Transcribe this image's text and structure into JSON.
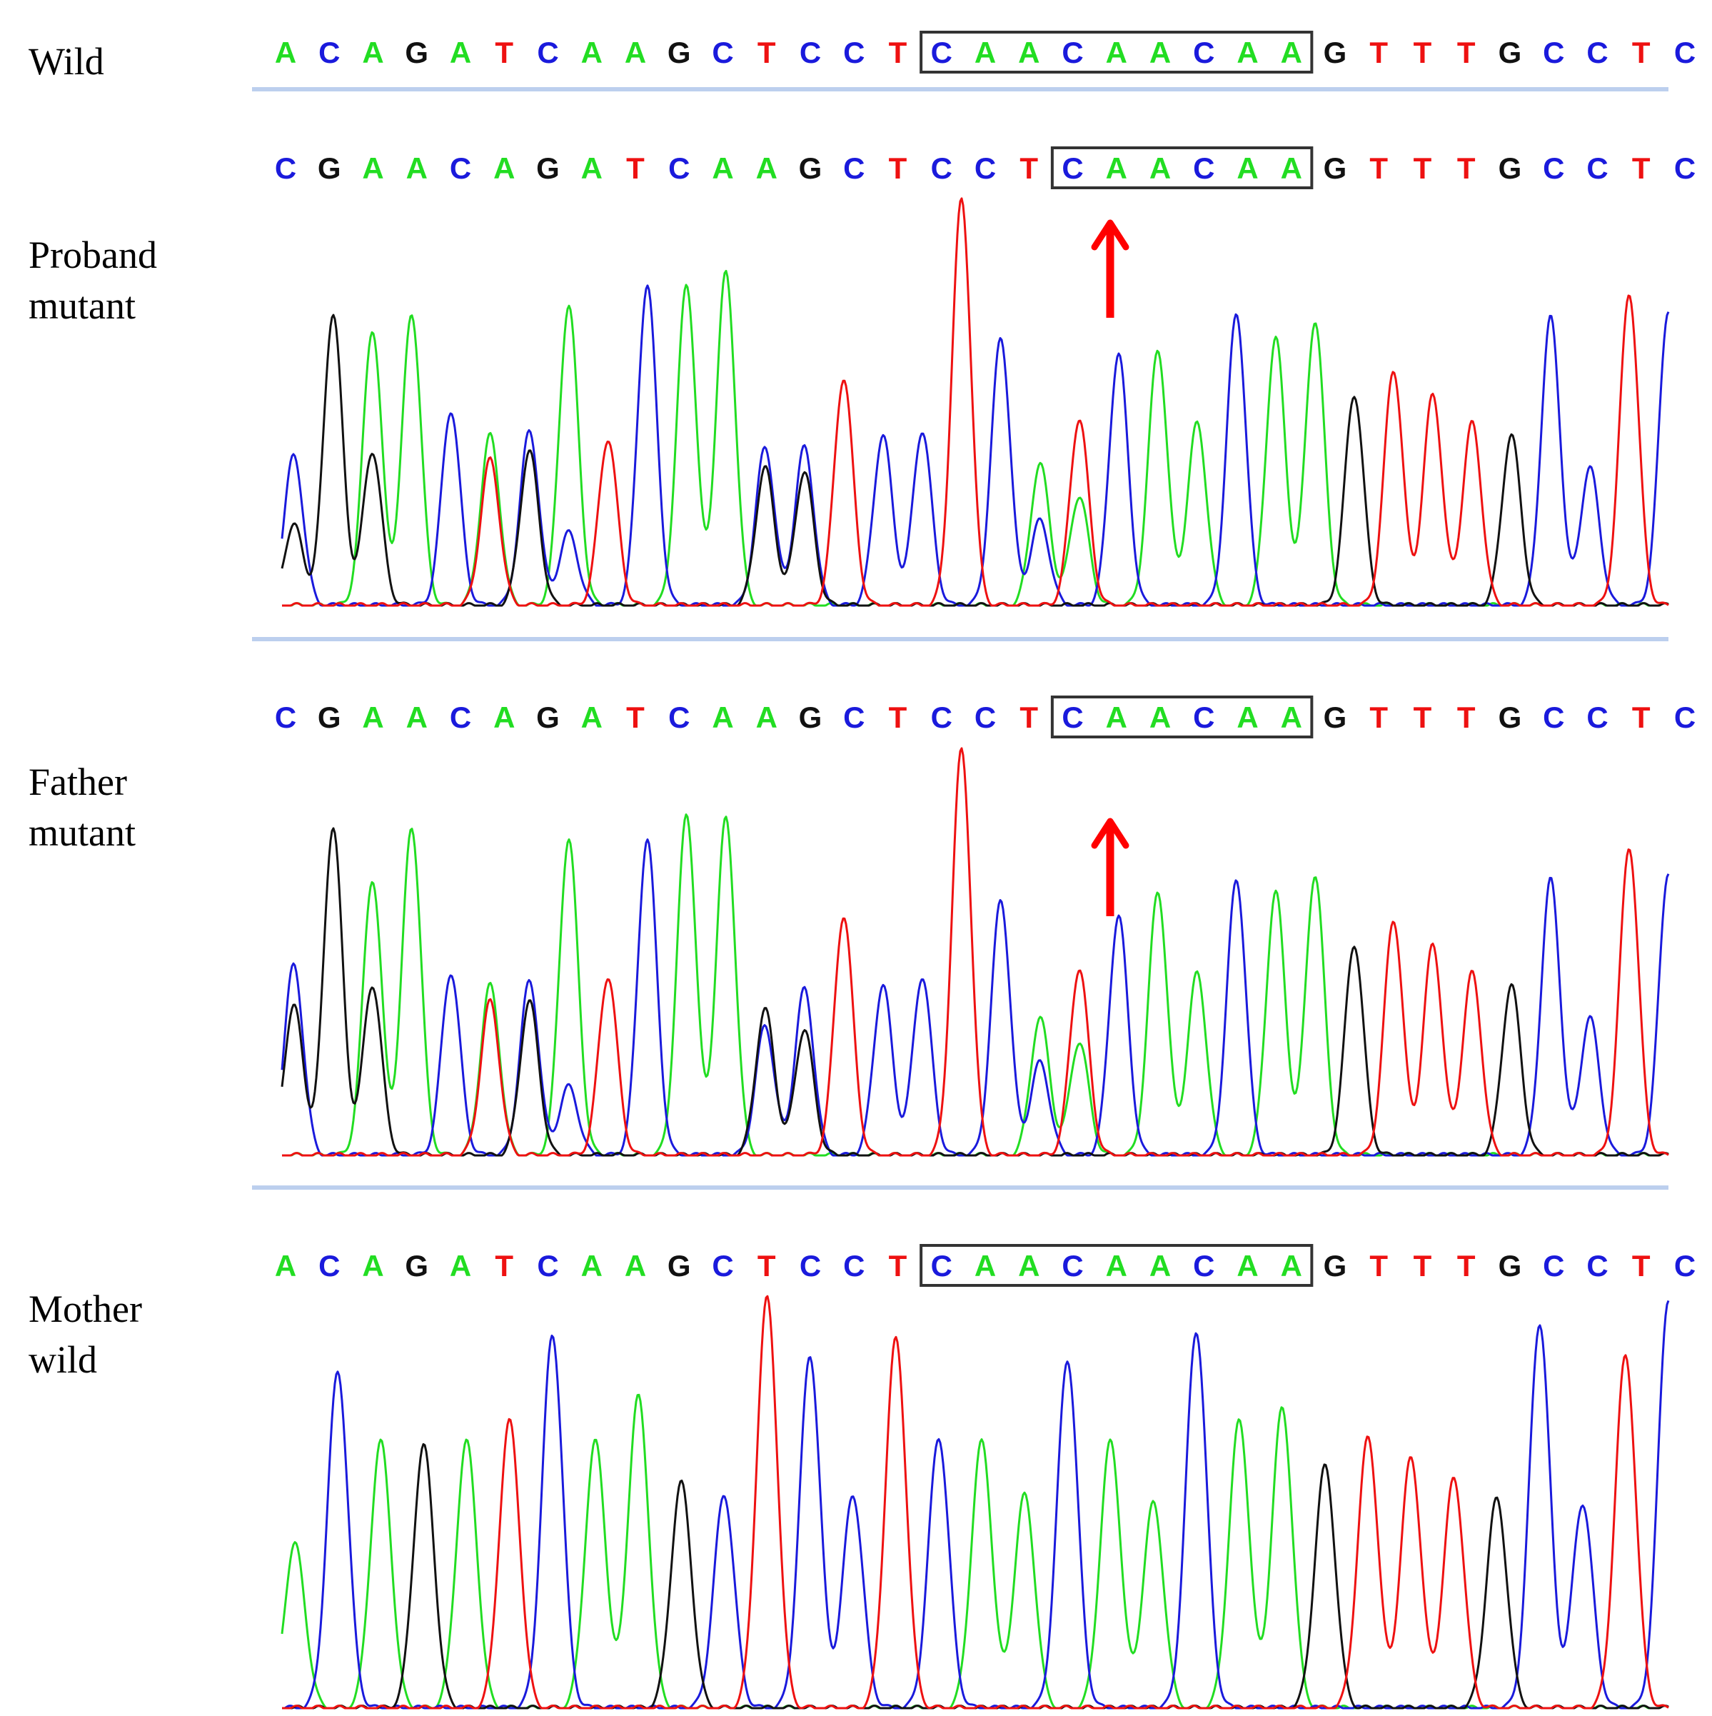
{
  "colors": {
    "A": "#22dd22",
    "C": "#1a1adc",
    "G": "#111111",
    "T": "#ee1111",
    "separator": "#bccfee",
    "arrow": "#ff0000",
    "box": "#333333"
  },
  "panels": [
    {
      "label_lines": [
        "Wild"
      ],
      "sequence": "ACAGATCAAGCTCCTCAACAACAAGTTTGCCTC",
      "box": [
        15,
        23
      ],
      "has_trace": false,
      "has_arrow": false
    },
    {
      "label_lines": [
        "Proband",
        "mutant"
      ],
      "sequence": "CGAACAGATCAAGCTCCTCAACAAGTTTGCCTC",
      "box": [
        18,
        23
      ],
      "has_trace": true,
      "has_arrow": true
    },
    {
      "label_lines": [
        "Father",
        "mutant"
      ],
      "sequence": "CGAACAGATCAAGCTCCTCAACAAGTTTGCCTC",
      "box": [
        18,
        23
      ],
      "has_trace": true,
      "has_arrow": true
    },
    {
      "label_lines": [
        "Mother",
        "wild"
      ],
      "sequence": "ACAGATCAAGCTCCTCAACAACAAGTTTGCCTC",
      "box": [
        15,
        23
      ],
      "has_trace": true,
      "has_arrow": false
    }
  ],
  "chart_data": [
    {
      "type": "line",
      "name": "Proband mutant chromatogram",
      "primary": [
        [
          "C",
          0.37
        ],
        [
          "G",
          0.72
        ],
        [
          "A",
          0.38
        ],
        [
          "A",
          0.4
        ],
        [
          "C",
          0.48
        ],
        [
          "A",
          0.42
        ],
        [
          "G",
          0.38
        ],
        [
          "A",
          0.74
        ],
        [
          "T",
          0.41
        ],
        [
          "C",
          0.43
        ],
        [
          "A",
          0.37
        ],
        [
          "A",
          0.41
        ],
        [
          "G",
          0.34
        ],
        [
          "C",
          0.39
        ],
        [
          "T",
          0.56
        ],
        [
          "C",
          0.42
        ],
        [
          "C",
          0.43
        ],
        [
          "T",
          1.0
        ],
        [
          "C",
          0.66
        ],
        [
          "C",
          0.21
        ],
        [
          "T",
          0.46
        ],
        [
          "C",
          0.62
        ],
        [
          "A",
          0.63
        ],
        [
          "A",
          0.45
        ],
        [
          "C",
          0.72
        ],
        [
          "A",
          0.66
        ],
        [
          "A",
          0.7
        ],
        [
          "G",
          0.52
        ],
        [
          "T",
          0.58
        ],
        [
          "T",
          0.52
        ],
        [
          "T",
          0.45
        ],
        [
          "G",
          0.42
        ],
        [
          "C",
          0.71
        ],
        [
          "C",
          0.34
        ],
        [
          "T",
          0.77
        ],
        [
          "C",
          0.73
        ]
      ],
      "secondary": [
        [
          0,
          "G",
          0.2
        ],
        [
          2,
          "G",
          0.38
        ],
        [
          2,
          "A",
          0.3
        ],
        [
          3,
          "A",
          0.32
        ],
        [
          5,
          "T",
          0.36
        ],
        [
          6,
          "C",
          0.43
        ],
        [
          7,
          "C",
          0.18
        ],
        [
          9,
          "C",
          0.36
        ],
        [
          10,
          "A",
          0.42
        ],
        [
          11,
          "A",
          0.41
        ],
        [
          12,
          "C",
          0.39
        ],
        [
          13,
          "G",
          0.33
        ],
        [
          19,
          "A",
          0.35
        ],
        [
          20,
          "A",
          0.27
        ]
      ]
    },
    {
      "type": "line",
      "name": "Father mutant chromatogram",
      "primary": [
        [
          "C",
          0.47
        ],
        [
          "G",
          0.81
        ],
        [
          "A",
          0.4
        ],
        [
          "A",
          0.42
        ],
        [
          "C",
          0.45
        ],
        [
          "A",
          0.42
        ],
        [
          "G",
          0.38
        ],
        [
          "A",
          0.78
        ],
        [
          "T",
          0.44
        ],
        [
          "C",
          0.4
        ],
        [
          "A",
          0.39
        ],
        [
          "A",
          0.41
        ],
        [
          "G",
          0.36
        ],
        [
          "C",
          0.41
        ],
        [
          "T",
          0.59
        ],
        [
          "C",
          0.42
        ],
        [
          "C",
          0.44
        ],
        [
          "T",
          1.0
        ],
        [
          "C",
          0.63
        ],
        [
          "C",
          0.23
        ],
        [
          "T",
          0.46
        ],
        [
          "C",
          0.59
        ],
        [
          "A",
          0.65
        ],
        [
          "A",
          0.45
        ],
        [
          "C",
          0.68
        ],
        [
          "A",
          0.65
        ],
        [
          "A",
          0.69
        ],
        [
          "G",
          0.52
        ],
        [
          "T",
          0.58
        ],
        [
          "T",
          0.52
        ],
        [
          "T",
          0.45
        ],
        [
          "G",
          0.42
        ],
        [
          "C",
          0.68
        ],
        [
          "C",
          0.34
        ],
        [
          "T",
          0.76
        ],
        [
          "C",
          0.7
        ]
      ],
      "secondary": [
        [
          0,
          "G",
          0.37
        ],
        [
          2,
          "G",
          0.42
        ],
        [
          2,
          "A",
          0.28
        ],
        [
          3,
          "A",
          0.39
        ],
        [
          5,
          "T",
          0.38
        ],
        [
          6,
          "C",
          0.43
        ],
        [
          7,
          "C",
          0.17
        ],
        [
          9,
          "C",
          0.38
        ],
        [
          10,
          "A",
          0.45
        ],
        [
          11,
          "A",
          0.42
        ],
        [
          12,
          "C",
          0.32
        ],
        [
          13,
          "G",
          0.31
        ],
        [
          19,
          "A",
          0.34
        ],
        [
          20,
          "A",
          0.28
        ]
      ]
    },
    {
      "type": "line",
      "name": "Mother wild chromatogram",
      "primary": [
        [
          "A",
          0.4
        ],
        [
          "C",
          0.82
        ],
        [
          "A",
          0.65
        ],
        [
          "G",
          0.64
        ],
        [
          "A",
          0.65
        ],
        [
          "T",
          0.7
        ],
        [
          "C",
          0.91
        ],
        [
          "A",
          0.65
        ],
        [
          "A",
          0.76
        ],
        [
          "G",
          0.55
        ],
        [
          "C",
          0.52
        ],
        [
          "T",
          1.0
        ],
        [
          "C",
          0.86
        ],
        [
          "C",
          0.52
        ],
        [
          "T",
          0.9
        ],
        [
          "C",
          0.66
        ],
        [
          "A",
          0.65
        ],
        [
          "A",
          0.52
        ],
        [
          "C",
          0.85
        ],
        [
          "A",
          0.65
        ],
        [
          "A",
          0.5
        ],
        [
          "C",
          0.92
        ],
        [
          "A",
          0.7
        ],
        [
          "A",
          0.73
        ],
        [
          "G",
          0.59
        ],
        [
          "T",
          0.66
        ],
        [
          "T",
          0.61
        ],
        [
          "T",
          0.56
        ],
        [
          "G",
          0.51
        ],
        [
          "C",
          0.94
        ],
        [
          "C",
          0.5
        ],
        [
          "T",
          0.86
        ],
        [
          "C",
          1.0
        ]
      ],
      "secondary": []
    }
  ]
}
